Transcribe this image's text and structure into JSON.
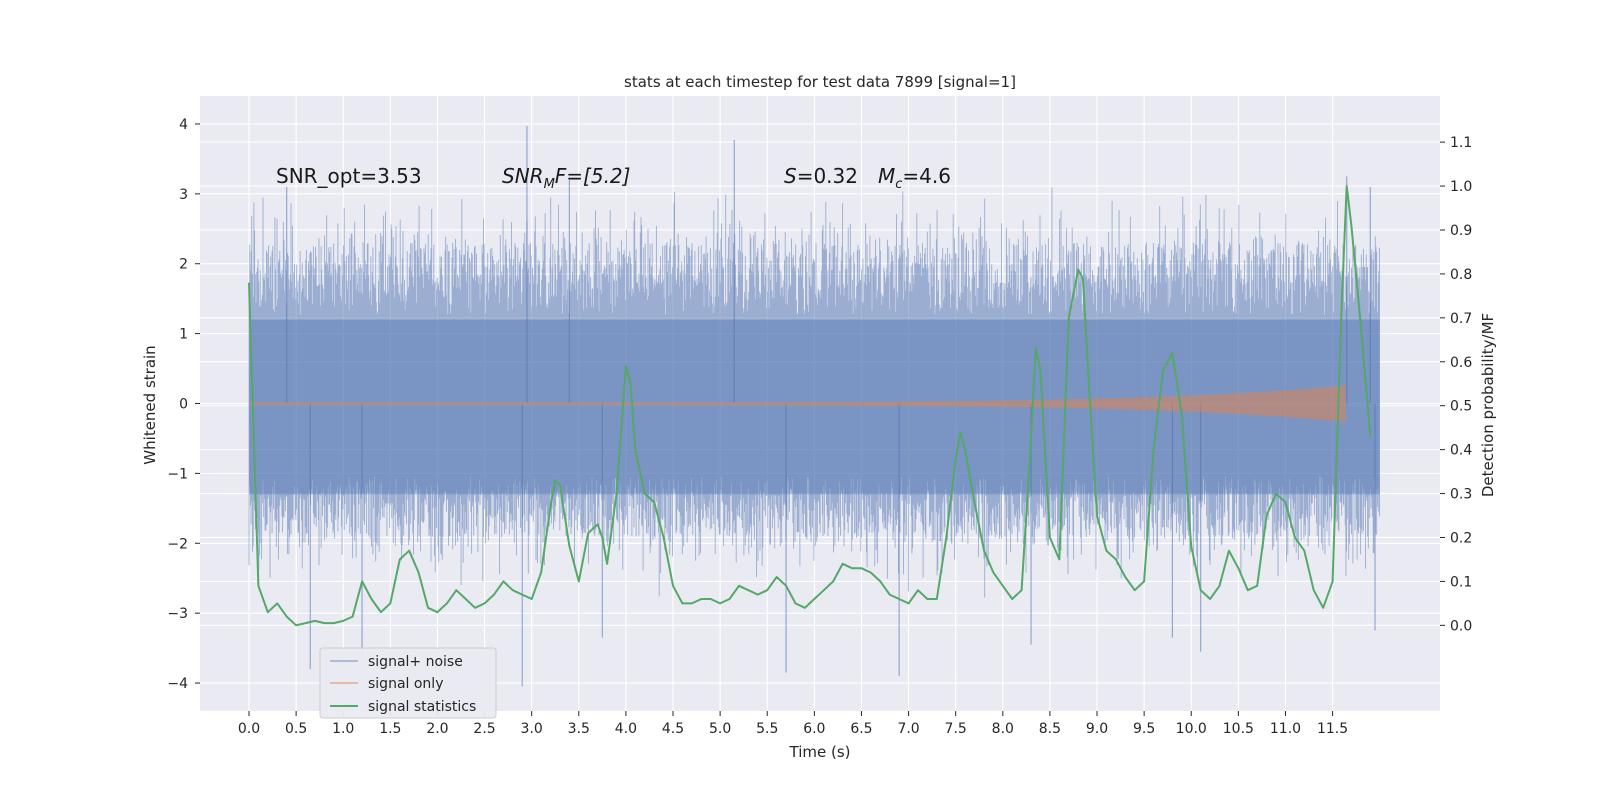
{
  "chart_data": {
    "type": "line",
    "title": "stats at each timestep for test data 7899 [signal=1]",
    "xlabel": "Time (s)",
    "ylabel_left": "Whitened strain",
    "ylabel_right": "Detection probability/MF",
    "xlim": [
      -0.52,
      12.64
    ],
    "ylim_left": [
      -4.4,
      4.4
    ],
    "ylim_right": [
      -0.195,
      1.205
    ],
    "x_ticks": [
      0.0,
      0.5,
      1.0,
      1.5,
      2.0,
      2.5,
      3.0,
      3.5,
      4.0,
      4.5,
      5.0,
      5.5,
      6.0,
      6.5,
      7.0,
      7.5,
      8.0,
      8.5,
      9.0,
      9.5,
      10.0,
      10.5,
      11.0,
      11.5
    ],
    "x_tick_labels": [
      "0.0",
      "0.5",
      "1.0",
      "1.5",
      "2.0",
      "2.5",
      "3.0",
      "3.5",
      "4.0",
      "4.5",
      "5.0",
      "5.5",
      "6.0",
      "6.5",
      "7.0",
      "7.5",
      "8.0",
      "8.5",
      "9.0",
      "9.5",
      "10.0",
      "10.5",
      "11.0",
      "11.5"
    ],
    "y_left_ticks": [
      4,
      3,
      2,
      1,
      0,
      -1,
      -2,
      -3,
      -4
    ],
    "y_left_tick_labels": [
      "4",
      "3",
      "2",
      "1",
      "0",
      "−1",
      "−2",
      "−3",
      "−4"
    ],
    "y_right_ticks": [
      1.1,
      1.0,
      0.9,
      0.8,
      0.7,
      0.6,
      0.5,
      0.4,
      0.3,
      0.2,
      0.1,
      0.0
    ],
    "y_right_tick_labels": [
      "1.1",
      "1.0",
      "0.9",
      "0.8",
      "0.7",
      "0.6",
      "0.5",
      "0.4",
      "0.3",
      "0.2",
      "0.1",
      "0.0"
    ],
    "annotations": {
      "snr_opt": "SNR_opt=3.53",
      "snr_mf_main": "SNR",
      "snr_mf_sub": "M",
      "snr_mf_rest": "F=[5.2]",
      "s_label": "S",
      "s_value": "=0.32",
      "mc_label": "M",
      "mc_sub": "c",
      "mc_value": "=4.6"
    },
    "legend": {
      "position": "lower-left",
      "entries": [
        "signal+ noise",
        "signal only",
        "signal statistics"
      ]
    },
    "colors": {
      "background": "#eaeaf2",
      "grid": "#ffffff",
      "noise": "#4c72b0",
      "signal": "#dd8452",
      "stats": "#55a868"
    },
    "series": [
      {
        "name": "signal+ noise",
        "axis": "left",
        "kind": "noise",
        "x_start": 0.0,
        "x_end": 12.0,
        "typical_envelope": [
          -1.9,
          2.3
        ],
        "spikes": [
          {
            "x": 0.65,
            "y": -3.8
          },
          {
            "x": 1.2,
            "y": -3.6
          },
          {
            "x": 0.4,
            "y": 3.1
          },
          {
            "x": 2.9,
            "y": -4.05
          },
          {
            "x": 2.95,
            "y": 3.97
          },
          {
            "x": 3.4,
            "y": 3.2
          },
          {
            "x": 3.75,
            "y": -3.35
          },
          {
            "x": 5.15,
            "y": 3.77
          },
          {
            "x": 5.7,
            "y": -3.85
          },
          {
            "x": 6.9,
            "y": -3.9
          },
          {
            "x": 8.3,
            "y": -3.45
          },
          {
            "x": 9.8,
            "y": -3.35
          },
          {
            "x": 10.1,
            "y": -3.55
          },
          {
            "x": 11.65,
            "y": 3.25
          },
          {
            "x": 11.9,
            "y": 3.1
          },
          {
            "x": 11.95,
            "y": -3.25
          }
        ]
      },
      {
        "name": "signal only",
        "axis": "left",
        "kind": "chirp",
        "x_start": 0.0,
        "x_merger": 11.65,
        "amplitude_start": 0.02,
        "amplitude_peak": 0.28
      },
      {
        "name": "signal statistics",
        "axis": "right",
        "kind": "line",
        "x": [
          0.0,
          0.1,
          0.2,
          0.3,
          0.4,
          0.5,
          0.6,
          0.7,
          0.8,
          0.9,
          1.0,
          1.1,
          1.2,
          1.3,
          1.4,
          1.5,
          1.6,
          1.7,
          1.8,
          1.9,
          2.0,
          2.1,
          2.2,
          2.3,
          2.4,
          2.5,
          2.6,
          2.7,
          2.8,
          2.9,
          3.0,
          3.1,
          3.2,
          3.25,
          3.3,
          3.4,
          3.5,
          3.6,
          3.7,
          3.75,
          3.8,
          3.9,
          4.0,
          4.05,
          4.1,
          4.2,
          4.3,
          4.4,
          4.5,
          4.6,
          4.7,
          4.8,
          4.9,
          5.0,
          5.1,
          5.2,
          5.3,
          5.4,
          5.5,
          5.6,
          5.7,
          5.8,
          5.9,
          6.0,
          6.1,
          6.2,
          6.3,
          6.4,
          6.5,
          6.6,
          6.7,
          6.8,
          6.9,
          7.0,
          7.1,
          7.2,
          7.3,
          7.4,
          7.5,
          7.55,
          7.6,
          7.7,
          7.8,
          7.9,
          8.0,
          8.1,
          8.2,
          8.3,
          8.35,
          8.4,
          8.5,
          8.6,
          8.7,
          8.8,
          8.85,
          8.9,
          9.0,
          9.1,
          9.2,
          9.3,
          9.4,
          9.5,
          9.6,
          9.7,
          9.8,
          9.9,
          10.0,
          10.1,
          10.2,
          10.3,
          10.4,
          10.5,
          10.6,
          10.7,
          10.8,
          10.9,
          11.0,
          11.1,
          11.2,
          11.3,
          11.4,
          11.5,
          11.6,
          11.65,
          11.7,
          11.8,
          11.9
        ],
        "y": [
          0.78,
          0.09,
          0.03,
          0.05,
          0.02,
          0.0,
          0.005,
          0.01,
          0.005,
          0.005,
          0.01,
          0.02,
          0.1,
          0.06,
          0.03,
          0.05,
          0.15,
          0.17,
          0.12,
          0.04,
          0.03,
          0.05,
          0.08,
          0.06,
          0.04,
          0.05,
          0.07,
          0.1,
          0.08,
          0.07,
          0.06,
          0.12,
          0.27,
          0.33,
          0.32,
          0.18,
          0.1,
          0.21,
          0.23,
          0.2,
          0.14,
          0.3,
          0.59,
          0.55,
          0.4,
          0.3,
          0.28,
          0.2,
          0.09,
          0.05,
          0.05,
          0.06,
          0.06,
          0.05,
          0.06,
          0.09,
          0.08,
          0.07,
          0.08,
          0.11,
          0.09,
          0.05,
          0.04,
          0.06,
          0.08,
          0.1,
          0.14,
          0.13,
          0.13,
          0.12,
          0.1,
          0.07,
          0.06,
          0.05,
          0.08,
          0.06,
          0.06,
          0.2,
          0.38,
          0.44,
          0.4,
          0.28,
          0.17,
          0.12,
          0.09,
          0.06,
          0.08,
          0.43,
          0.63,
          0.58,
          0.2,
          0.15,
          0.7,
          0.81,
          0.79,
          0.6,
          0.25,
          0.17,
          0.15,
          0.11,
          0.08,
          0.1,
          0.4,
          0.58,
          0.62,
          0.48,
          0.18,
          0.08,
          0.06,
          0.09,
          0.17,
          0.13,
          0.08,
          0.09,
          0.25,
          0.3,
          0.28,
          0.2,
          0.17,
          0.08,
          0.04,
          0.1,
          0.75,
          1.0,
          0.91,
          0.68,
          0.43
        ]
      }
    ]
  }
}
